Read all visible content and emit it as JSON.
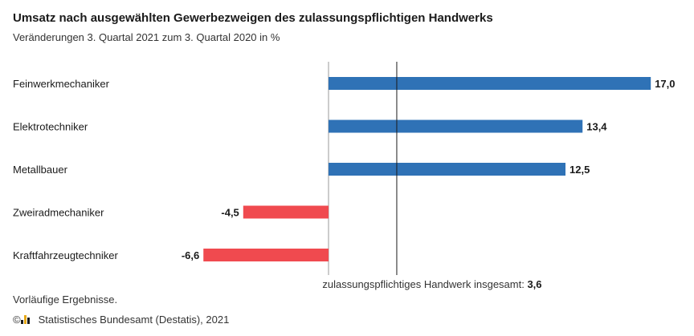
{
  "title": "Umsatz nach ausgewählten Gewerbezweigen des zulassungspflichtigen Handwerks",
  "subtitle": "Veränderungen 3. Quartal 2021 zum 3. Quartal 2020 in %",
  "footnote": "Vorläufige Ergebnisse.",
  "source": {
    "copyright": "©",
    "text": "Statistisches Bundesamt (Destatis), 2021",
    "logo_icon": "destatis-logo-icon"
  },
  "colors": {
    "positive": "#2f72b6",
    "negative": "#f04a4f",
    "axis": "#1a1a1a"
  },
  "chart_data": {
    "type": "bar",
    "orientation": "horizontal",
    "categories": [
      "Feinwerkmechaniker",
      "Elektrotechniker",
      "Metallbauer",
      "Zweiradmechaniker",
      "Kraftfahrzeugtechniker"
    ],
    "values": [
      17.0,
      13.4,
      12.5,
      -4.5,
      -6.6
    ],
    "value_labels": [
      "17,0",
      "13,4",
      "12,5",
      "-4,5",
      "-6,6"
    ],
    "reference_line": {
      "value": 3.6,
      "label": "zulassungspflichtiges Handwerk insgesamt:",
      "value_label": "3,6"
    },
    "xlim": [
      -6.6,
      17.0
    ],
    "grid": false,
    "legend": "none"
  }
}
